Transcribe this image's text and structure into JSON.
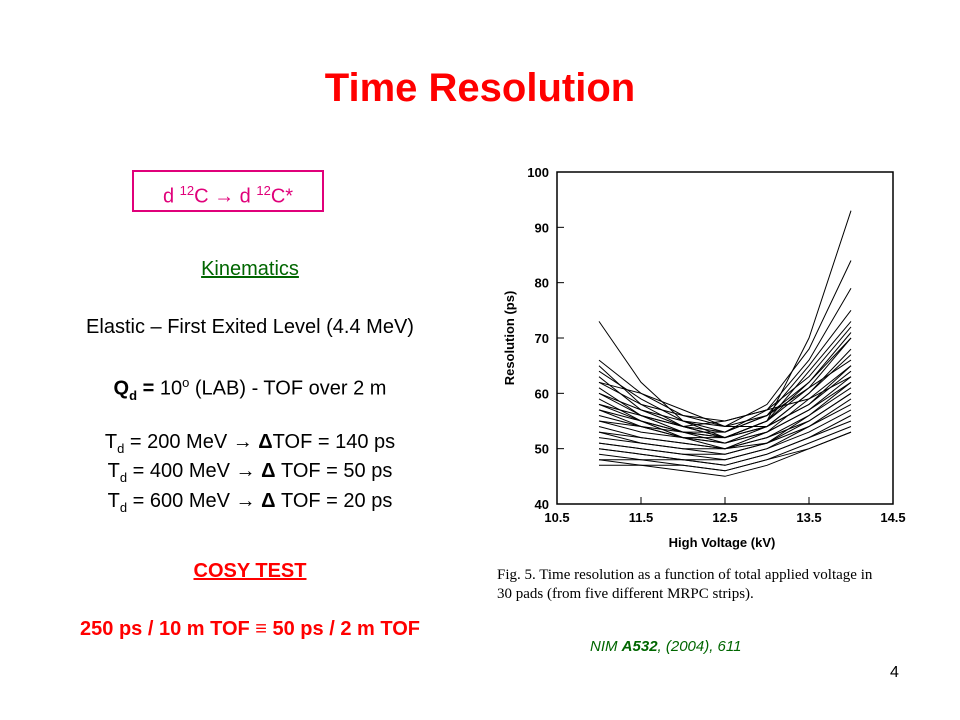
{
  "title": "Time Resolution",
  "reaction": {
    "pre": "d ",
    "sup1": "12",
    "mid": "C  →  d ",
    "sup2": "12",
    "post": "C*"
  },
  "kinematics": {
    "heading": "Kinematics",
    "line1": "Elastic – First Exited Level (4.4 MeV)",
    "line2": {
      "q": "Q",
      "sub": "d",
      "eq": " = ",
      "val": "10",
      "sup": "o",
      "rest": " (LAB) - TOF over 2 m"
    },
    "energies": [
      {
        "t": "T",
        "sub": "d",
        "text": " = 200 MeV  →  ",
        "delta": "Δ",
        "rest": "TOF = 140 ps"
      },
      {
        "t": "T",
        "sub": "d",
        "text": " = 400 MeV  →  ",
        "delta": "Δ",
        "rest": " TOF = 50 ps"
      },
      {
        "t": "T",
        "sub": "d",
        "text": " = 600 MeV  →  ",
        "delta": "Δ",
        "rest": " TOF = 20 ps"
      }
    ]
  },
  "cosy": {
    "heading": "COSY TEST",
    "line": "250 ps / 10 m TOF ≡ 50 ps / 2 m TOF"
  },
  "caption": {
    "line1": "Fig. 5.  Time resolution as a function of total applied voltage in",
    "line2": "30 pads (from five different MRPC strips)."
  },
  "citation": {
    "pre": "NIM ",
    "bold": "A532",
    "post": ", (2004), 611"
  },
  "page_number": "4",
  "colors": {
    "title": "#ff0000",
    "reaction": "#e0007a",
    "kinematics": "#006600",
    "cosy": "#ff0000",
    "citation": "#006600"
  },
  "chart_data": {
    "type": "line",
    "xlabel": "High Voltage (kV)",
    "ylabel": "Resolution (ps)",
    "xlim": [
      10.5,
      14.5
    ],
    "ylim": [
      40,
      100
    ],
    "xticks": [
      "10.5",
      "11.5",
      "12.5",
      "13.5",
      "14.5"
    ],
    "yticks": [
      "40",
      "50",
      "60",
      "70",
      "80",
      "90",
      "100"
    ],
    "x": [
      11.0,
      11.5,
      12.0,
      12.5,
      13.0,
      13.5,
      14.0
    ],
    "series": [
      {
        "values": [
          73,
          62,
          55,
          52,
          55,
          70,
          93
        ]
      },
      {
        "values": [
          66,
          60,
          56,
          54,
          58,
          68,
          84
        ]
      },
      {
        "values": [
          65,
          58,
          54,
          53,
          57,
          66,
          79
        ]
      },
      {
        "values": [
          64,
          59,
          55,
          53,
          56,
          65,
          75
        ]
      },
      {
        "values": [
          63,
          57,
          54,
          52,
          55,
          64,
          73
        ]
      },
      {
        "values": [
          62,
          58,
          56,
          55,
          57,
          63,
          72
        ]
      },
      {
        "values": [
          61,
          56,
          53,
          52,
          55,
          62,
          71
        ]
      },
      {
        "values": [
          60,
          57,
          55,
          54,
          56,
          62,
          70
        ]
      },
      {
        "values": [
          59,
          55,
          53,
          53,
          56,
          61,
          70
        ]
      },
      {
        "values": [
          58,
          56,
          54,
          52,
          54,
          60,
          68
        ]
      },
      {
        "values": [
          57,
          54,
          52,
          51,
          54,
          60,
          67
        ]
      },
      {
        "values": [
          58,
          55,
          53,
          52,
          55,
          61,
          66
        ]
      },
      {
        "values": [
          56,
          54,
          52,
          51,
          53,
          59,
          65
        ]
      },
      {
        "values": [
          55,
          53,
          52,
          52,
          54,
          58,
          64
        ]
      },
      {
        "values": [
          55,
          54,
          53,
          51,
          53,
          57,
          63
        ]
      },
      {
        "values": [
          54,
          52,
          51,
          50,
          53,
          57,
          62
        ]
      },
      {
        "values": [
          53,
          52,
          51,
          50,
          52,
          56,
          61
        ]
      },
      {
        "values": [
          53,
          51,
          50,
          50,
          52,
          55,
          60
        ]
      },
      {
        "values": [
          52,
          51,
          50,
          49,
          51,
          55,
          60
        ]
      },
      {
        "values": [
          51,
          50,
          49,
          49,
          51,
          54,
          59
        ]
      },
      {
        "values": [
          51,
          50,
          49,
          48,
          50,
          54,
          58
        ]
      },
      {
        "values": [
          50,
          49,
          48,
          48,
          50,
          53,
          57
        ]
      },
      {
        "values": [
          50,
          49,
          48,
          47,
          49,
          52,
          56
        ]
      },
      {
        "values": [
          49,
          48,
          48,
          47,
          49,
          52,
          55
        ]
      },
      {
        "values": [
          48,
          48,
          47,
          46,
          48,
          51,
          54
        ]
      },
      {
        "values": [
          48,
          47,
          47,
          46,
          48,
          50,
          53
        ]
      },
      {
        "values": [
          47,
          47,
          46,
          45,
          47,
          50,
          53
        ]
      },
      {
        "values": [
          62,
          60,
          57,
          54,
          54,
          58,
          65
        ]
      },
      {
        "values": [
          60,
          56,
          54,
          55,
          57,
          59,
          63
        ]
      },
      {
        "values": [
          57,
          55,
          52,
          50,
          51,
          56,
          62
        ]
      }
    ]
  }
}
